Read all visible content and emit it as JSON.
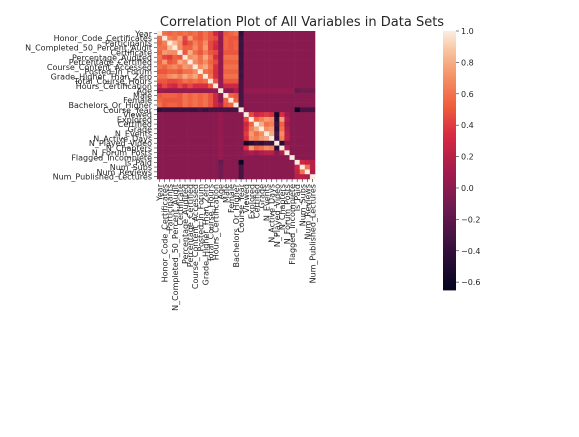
{
  "chart_data": {
    "type": "heatmap",
    "title": "Correlation Plot of All Variables in Data Sets",
    "xlabel": "",
    "ylabel": "",
    "variables": [
      "Year",
      "Honor_Code_Certificates",
      "Participants",
      "N_Completed_50_Percent_Audit",
      "Certificate",
      "Percentage_Audited",
      "Percentage_Certified",
      "Course_Content_Accessed",
      "Posted_In_Forum",
      "Grade_Higher_Than_Zero",
      "Total_Course_Hours",
      "Hours_Certification",
      "Age",
      "Male",
      "Female",
      "Bachelors_Or_Higher",
      "Course_Year",
      "Viewed",
      "Explored",
      "Certified",
      "Grade",
      "N_Events",
      "N_Active_Days",
      "N_Played_Video",
      "N_Chapters",
      "N_Forum_Posts",
      "Flagged_Incomplete",
      "Is_Paid",
      "Num_Subs",
      "Num_Reviews",
      "Num_Published_Lectures"
    ],
    "colorbar": {
      "min": -0.65,
      "max": 1.0,
      "ticks": [
        "1.0",
        "0.8",
        "0.6",
        "0.4",
        "0.2",
        "0.0",
        "−0.2",
        "−0.4",
        "−0.6"
      ],
      "tick_values": [
        1.0,
        0.8,
        0.6,
        0.4,
        0.2,
        0.0,
        -0.2,
        -0.4,
        -0.6
      ]
    },
    "matrix": [
      [
        1.0,
        0.6,
        0.55,
        0.6,
        0.55,
        0.6,
        0.55,
        0.6,
        0.5,
        0.6,
        0.5,
        0.3,
        0.1,
        0.5,
        0.55,
        0.6,
        -0.4,
        0.0,
        0.0,
        0.0,
        0.0,
        0.0,
        0.0,
        0.0,
        0.0,
        0.0,
        0.0,
        0.0,
        0.0,
        0.0,
        0.0
      ],
      [
        0.6,
        1.0,
        0.65,
        0.6,
        0.75,
        0.45,
        0.75,
        0.55,
        0.5,
        0.6,
        0.5,
        0.45,
        0.05,
        0.55,
        0.5,
        0.5,
        -0.35,
        0.0,
        0.0,
        0.0,
        0.0,
        0.0,
        0.0,
        0.0,
        0.0,
        0.0,
        0.0,
        0.0,
        0.0,
        0.0,
        0.0
      ],
      [
        0.55,
        0.65,
        1.0,
        0.85,
        0.7,
        0.4,
        0.5,
        0.65,
        0.55,
        0.7,
        0.45,
        0.35,
        0.05,
        0.55,
        0.5,
        0.55,
        -0.35,
        0.0,
        0.0,
        0.0,
        0.0,
        0.0,
        0.0,
        0.0,
        0.0,
        0.0,
        0.0,
        0.0,
        0.0,
        0.0,
        0.0
      ],
      [
        0.6,
        0.6,
        0.85,
        1.0,
        0.7,
        0.55,
        0.55,
        0.7,
        0.55,
        0.75,
        0.45,
        0.3,
        0.05,
        0.55,
        0.5,
        0.55,
        -0.35,
        0.0,
        0.0,
        0.0,
        0.0,
        0.0,
        0.0,
        0.0,
        0.0,
        0.0,
        0.0,
        0.0,
        0.0,
        0.0,
        0.0
      ],
      [
        0.55,
        0.75,
        0.7,
        0.7,
        1.0,
        0.5,
        0.8,
        0.6,
        0.5,
        0.65,
        0.5,
        0.45,
        0.05,
        0.5,
        0.5,
        0.5,
        -0.35,
        0.0,
        0.0,
        0.0,
        0.0,
        0.0,
        0.0,
        0.0,
        0.0,
        0.0,
        0.0,
        0.0,
        0.0,
        0.0,
        0.0
      ],
      [
        0.6,
        0.45,
        0.4,
        0.55,
        0.5,
        1.0,
        0.7,
        0.75,
        0.6,
        0.8,
        0.6,
        0.35,
        0.05,
        0.6,
        0.6,
        0.6,
        -0.35,
        0.0,
        0.0,
        0.0,
        0.0,
        0.0,
        0.0,
        0.0,
        0.0,
        0.0,
        0.0,
        0.0,
        0.0,
        0.0,
        0.0
      ],
      [
        0.55,
        0.75,
        0.5,
        0.55,
        0.8,
        0.7,
        1.0,
        0.7,
        0.6,
        0.7,
        0.55,
        0.45,
        0.05,
        0.55,
        0.55,
        0.55,
        -0.35,
        0.0,
        0.0,
        0.0,
        0.0,
        0.0,
        0.0,
        0.0,
        0.0,
        0.0,
        0.0,
        0.0,
        0.0,
        0.0,
        0.0
      ],
      [
        0.6,
        0.55,
        0.65,
        0.7,
        0.6,
        0.75,
        0.7,
        1.0,
        0.7,
        0.8,
        0.6,
        0.35,
        0.05,
        0.6,
        0.6,
        0.6,
        -0.35,
        0.0,
        0.0,
        0.0,
        0.0,
        0.0,
        0.0,
        0.0,
        0.0,
        0.0,
        0.0,
        0.0,
        0.0,
        0.0,
        0.0
      ],
      [
        0.5,
        0.5,
        0.55,
        0.55,
        0.5,
        0.6,
        0.6,
        0.7,
        1.0,
        0.6,
        0.55,
        0.35,
        0.05,
        0.55,
        0.55,
        0.55,
        -0.3,
        0.0,
        0.0,
        0.0,
        0.0,
        0.0,
        0.0,
        0.0,
        0.0,
        0.0,
        0.0,
        0.0,
        0.0,
        0.0,
        0.0
      ],
      [
        0.6,
        0.6,
        0.7,
        0.75,
        0.65,
        0.8,
        0.7,
        0.8,
        0.6,
        1.0,
        0.6,
        0.35,
        0.05,
        0.6,
        0.6,
        0.6,
        -0.35,
        0.0,
        0.0,
        0.0,
        0.0,
        0.0,
        0.0,
        0.0,
        0.0,
        0.0,
        0.0,
        0.0,
        0.0,
        0.0,
        0.0
      ],
      [
        0.5,
        0.5,
        0.45,
        0.45,
        0.5,
        0.6,
        0.55,
        0.6,
        0.55,
        0.6,
        1.0,
        0.5,
        0.05,
        0.5,
        0.5,
        0.5,
        -0.3,
        0.0,
        0.0,
        0.0,
        0.0,
        0.0,
        0.0,
        0.0,
        0.0,
        0.0,
        0.0,
        0.0,
        0.0,
        0.0,
        0.0
      ],
      [
        0.3,
        0.45,
        0.35,
        0.3,
        0.45,
        0.35,
        0.45,
        0.35,
        0.35,
        0.35,
        0.5,
        1.0,
        0.05,
        0.3,
        0.3,
        0.3,
        -0.3,
        0.0,
        0.0,
        0.0,
        0.0,
        0.0,
        0.0,
        0.0,
        0.0,
        0.0,
        0.0,
        0.0,
        0.0,
        0.0,
        0.0
      ],
      [
        0.1,
        0.05,
        0.05,
        0.05,
        0.05,
        0.05,
        0.05,
        0.05,
        0.05,
        0.05,
        0.05,
        0.05,
        1.0,
        0.0,
        0.0,
        0.15,
        -0.3,
        0.05,
        0.05,
        0.05,
        0.05,
        0.05,
        0.05,
        0.05,
        0.05,
        0.05,
        0.05,
        -0.15,
        -0.1,
        -0.1,
        -0.1
      ],
      [
        0.5,
        0.55,
        0.55,
        0.55,
        0.5,
        0.6,
        0.55,
        0.6,
        0.55,
        0.6,
        0.5,
        0.3,
        0.0,
        1.0,
        0.55,
        0.5,
        -0.3,
        0.0,
        0.0,
        0.0,
        0.0,
        0.0,
        0.0,
        0.0,
        0.0,
        0.0,
        0.0,
        0.0,
        0.0,
        0.0,
        0.0
      ],
      [
        0.55,
        0.5,
        0.5,
        0.5,
        0.5,
        0.6,
        0.55,
        0.6,
        0.55,
        0.6,
        0.5,
        0.3,
        0.0,
        0.55,
        1.0,
        0.55,
        -0.3,
        0.0,
        0.0,
        0.0,
        0.0,
        0.0,
        0.0,
        0.0,
        0.0,
        0.0,
        0.0,
        0.0,
        0.0,
        0.0,
        0.0
      ],
      [
        0.6,
        0.5,
        0.55,
        0.55,
        0.5,
        0.6,
        0.55,
        0.6,
        0.55,
        0.6,
        0.5,
        0.3,
        0.15,
        0.5,
        0.55,
        1.0,
        -0.3,
        0.0,
        0.0,
        0.0,
        0.0,
        0.0,
        0.0,
        0.0,
        0.0,
        0.0,
        0.0,
        0.0,
        0.0,
        0.0,
        0.0
      ],
      [
        -0.4,
        -0.35,
        -0.35,
        -0.35,
        -0.35,
        -0.35,
        -0.35,
        -0.35,
        -0.3,
        -0.35,
        -0.3,
        -0.3,
        -0.3,
        -0.3,
        -0.3,
        -0.3,
        1.0,
        0.0,
        0.0,
        0.0,
        0.0,
        0.0,
        0.0,
        0.0,
        0.0,
        0.0,
        0.0,
        -0.6,
        -0.3,
        -0.3,
        -0.3
      ],
      [
        0.0,
        0.0,
        0.0,
        0.0,
        0.0,
        0.0,
        0.0,
        0.0,
        0.0,
        0.0,
        0.0,
        0.0,
        0.05,
        0.0,
        0.0,
        0.0,
        0.0,
        1.0,
        0.45,
        0.3,
        0.35,
        0.4,
        0.35,
        -0.55,
        0.35,
        0.1,
        0.0,
        0.0,
        0.0,
        0.0,
        0.0
      ],
      [
        0.0,
        0.0,
        0.0,
        0.0,
        0.0,
        0.0,
        0.0,
        0.0,
        0.0,
        0.0,
        0.0,
        0.0,
        0.05,
        0.0,
        0.0,
        0.0,
        0.0,
        0.45,
        1.0,
        0.55,
        0.65,
        0.75,
        0.7,
        -0.45,
        0.75,
        0.15,
        0.0,
        0.0,
        0.0,
        0.0,
        0.0
      ],
      [
        0.0,
        0.0,
        0.0,
        0.0,
        0.0,
        0.0,
        0.0,
        0.0,
        0.0,
        0.0,
        0.0,
        0.0,
        0.05,
        0.0,
        0.0,
        0.0,
        0.0,
        0.3,
        0.55,
        1.0,
        0.8,
        0.6,
        0.65,
        -0.35,
        0.55,
        0.1,
        0.0,
        0.0,
        0.0,
        0.0,
        0.0
      ],
      [
        0.0,
        0.0,
        0.0,
        0.0,
        0.0,
        0.0,
        0.0,
        0.0,
        0.0,
        0.0,
        0.0,
        0.0,
        0.05,
        0.0,
        0.0,
        0.0,
        0.0,
        0.35,
        0.65,
        0.8,
        1.0,
        0.7,
        0.75,
        -0.4,
        0.6,
        0.15,
        0.0,
        0.0,
        0.0,
        0.0,
        0.0
      ],
      [
        0.0,
        0.0,
        0.0,
        0.0,
        0.0,
        0.0,
        0.0,
        0.0,
        0.0,
        0.0,
        0.0,
        0.0,
        0.05,
        0.0,
        0.0,
        0.0,
        0.0,
        0.4,
        0.75,
        0.6,
        0.7,
        1.0,
        0.8,
        -0.3,
        0.7,
        0.2,
        0.0,
        0.0,
        0.0,
        0.0,
        0.0
      ],
      [
        0.0,
        0.0,
        0.0,
        0.0,
        0.0,
        0.0,
        0.0,
        0.0,
        0.0,
        0.0,
        0.0,
        0.0,
        0.05,
        0.0,
        0.0,
        0.0,
        0.0,
        0.35,
        0.7,
        0.65,
        0.75,
        0.8,
        1.0,
        -0.35,
        0.65,
        0.2,
        0.0,
        0.0,
        0.0,
        0.0,
        0.0
      ],
      [
        0.0,
        0.0,
        0.0,
        0.0,
        0.0,
        0.0,
        0.0,
        0.0,
        0.0,
        0.0,
        0.0,
        0.0,
        0.05,
        0.0,
        0.0,
        0.0,
        0.0,
        -0.55,
        -0.45,
        -0.35,
        -0.4,
        -0.3,
        -0.35,
        1.0,
        -0.45,
        0.0,
        0.0,
        0.0,
        0.0,
        0.0,
        0.0
      ],
      [
        0.0,
        0.0,
        0.0,
        0.0,
        0.0,
        0.0,
        0.0,
        0.0,
        0.0,
        0.0,
        0.0,
        0.0,
        0.05,
        0.0,
        0.0,
        0.0,
        0.0,
        0.35,
        0.75,
        0.55,
        0.6,
        0.7,
        0.65,
        -0.45,
        1.0,
        0.15,
        0.0,
        0.0,
        0.0,
        0.0,
        0.0
      ],
      [
        0.0,
        0.0,
        0.0,
        0.0,
        0.0,
        0.0,
        0.0,
        0.0,
        0.0,
        0.0,
        0.0,
        0.0,
        0.05,
        0.0,
        0.0,
        0.0,
        0.0,
        0.1,
        0.15,
        0.1,
        0.15,
        0.2,
        0.2,
        0.0,
        0.15,
        1.0,
        0.0,
        0.0,
        0.0,
        0.0,
        0.0
      ],
      [
        0.0,
        0.0,
        0.0,
        0.0,
        0.0,
        0.0,
        0.0,
        0.0,
        0.0,
        0.0,
        0.0,
        0.0,
        0.05,
        0.0,
        0.0,
        0.0,
        0.0,
        0.0,
        0.0,
        0.0,
        0.0,
        0.0,
        0.0,
        0.0,
        0.0,
        0.0,
        1.0,
        0.0,
        0.0,
        0.0,
        0.0
      ],
      [
        0.0,
        0.0,
        0.0,
        0.0,
        0.0,
        0.0,
        0.0,
        0.0,
        0.0,
        0.0,
        0.0,
        0.0,
        -0.15,
        0.0,
        0.0,
        0.0,
        -0.6,
        0.0,
        0.0,
        0.0,
        0.0,
        0.0,
        0.0,
        0.0,
        0.0,
        0.0,
        0.0,
        1.0,
        0.3,
        0.25,
        0.2
      ],
      [
        0.0,
        0.0,
        0.0,
        0.0,
        0.0,
        0.0,
        0.0,
        0.0,
        0.0,
        0.0,
        0.0,
        0.0,
        -0.1,
        0.0,
        0.0,
        0.0,
        -0.3,
        0.0,
        0.0,
        0.0,
        0.0,
        0.0,
        0.0,
        0.0,
        0.0,
        0.0,
        0.0,
        0.3,
        1.0,
        0.6,
        0.2
      ],
      [
        0.0,
        0.0,
        0.0,
        0.0,
        0.0,
        0.0,
        0.0,
        0.0,
        0.0,
        0.0,
        0.0,
        0.0,
        -0.1,
        0.0,
        0.0,
        0.0,
        -0.3,
        0.0,
        0.0,
        0.0,
        0.0,
        0.0,
        0.0,
        0.0,
        0.0,
        0.0,
        0.0,
        0.25,
        0.6,
        1.0,
        0.15
      ],
      [
        0.0,
        0.0,
        0.0,
        0.0,
        0.0,
        0.0,
        0.0,
        0.0,
        0.0,
        0.0,
        0.0,
        0.0,
        -0.1,
        0.0,
        0.0,
        0.0,
        -0.3,
        0.0,
        0.0,
        0.0,
        0.0,
        0.0,
        0.0,
        0.0,
        0.0,
        0.0,
        0.0,
        0.2,
        0.2,
        0.15,
        1.0
      ]
    ]
  }
}
